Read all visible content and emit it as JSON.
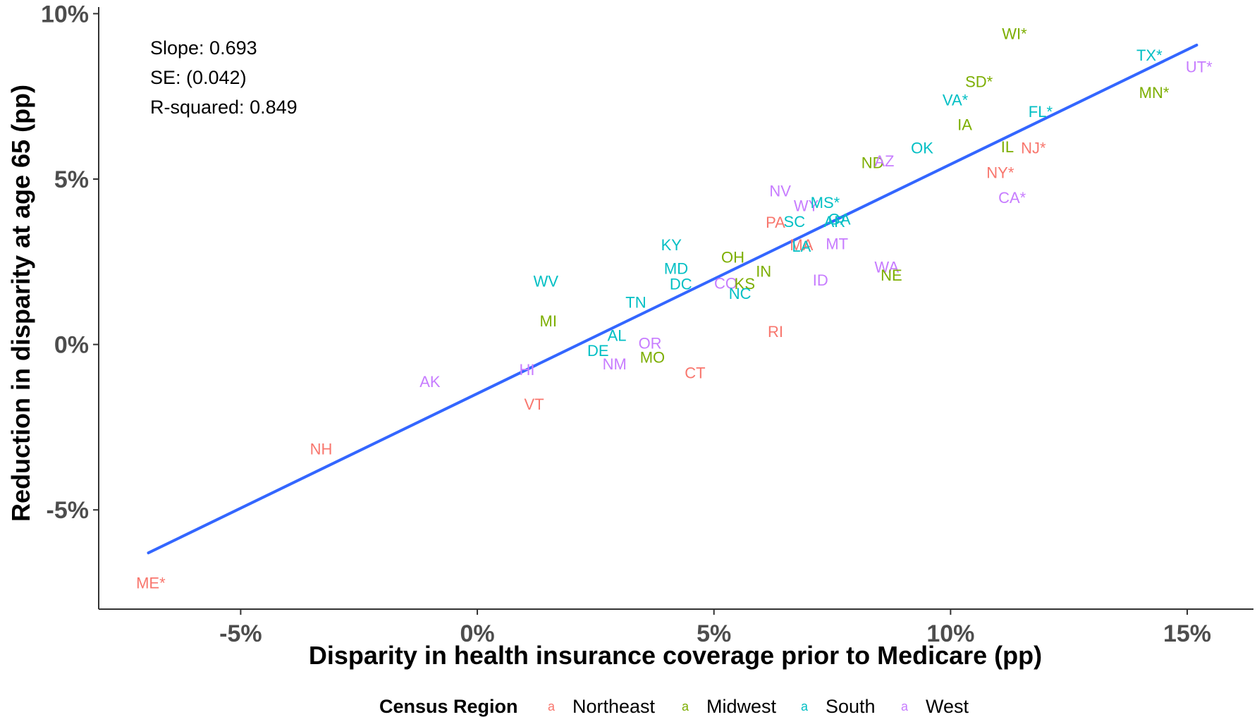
{
  "chart_data": {
    "type": "scatter",
    "xlabel": "Disparity in health insurance coverage prior to Medicare (pp)",
    "ylabel": "Reduction in disparity at age 65 (pp)",
    "xlim": [
      -8,
      16.4
    ],
    "ylim": [
      -8.0,
      10.2
    ],
    "x_ticks": [
      -5,
      0,
      5,
      10,
      15
    ],
    "x_tick_labels": [
      "-5%",
      "0%",
      "5%",
      "10%",
      "15%"
    ],
    "y_ticks": [
      -5,
      0,
      5,
      10
    ],
    "y_tick_labels": [
      "-5%",
      "0%",
      "5%",
      "10%"
    ],
    "grid": false,
    "annotations": [
      "Slope: 0.693",
      "SE: (0.042)",
      "R-squared: 0.849"
    ],
    "fit_line": {
      "x": [
        -6.95,
        15.2
      ],
      "y": [
        -6.3,
        9.05
      ],
      "color": "#3366FF"
    },
    "legend": {
      "title": "Census Region",
      "placement": "bottom",
      "key_glyph": "a",
      "entries": [
        {
          "name": "Northeast",
          "color": "#F8766D"
        },
        {
          "name": "Midwest",
          "color": "#7CAE00"
        },
        {
          "name": "South",
          "color": "#00BFC4"
        },
        {
          "name": "West",
          "color": "#C77CFF"
        }
      ]
    },
    "points": [
      {
        "label": "ME*",
        "x": -6.9,
        "y": -7.2,
        "region": "Northeast"
      },
      {
        "label": "NH",
        "x": -3.3,
        "y": -3.15,
        "region": "Northeast"
      },
      {
        "label": "AK",
        "x": -1.0,
        "y": -1.12,
        "region": "West"
      },
      {
        "label": "HI",
        "x": 1.05,
        "y": -0.75,
        "region": "West"
      },
      {
        "label": "VT",
        "x": 1.2,
        "y": -1.8,
        "region": "Northeast"
      },
      {
        "label": "WV",
        "x": 1.45,
        "y": 1.92,
        "region": "South"
      },
      {
        "label": "MI",
        "x": 1.5,
        "y": 0.72,
        "region": "Midwest"
      },
      {
        "label": "DE",
        "x": 2.55,
        "y": -0.18,
        "region": "South"
      },
      {
        "label": "AL",
        "x": 2.95,
        "y": 0.28,
        "region": "South"
      },
      {
        "label": "NM",
        "x": 2.9,
        "y": -0.58,
        "region": "West"
      },
      {
        "label": "TN",
        "x": 3.35,
        "y": 1.28,
        "region": "South"
      },
      {
        "label": "OR",
        "x": 3.65,
        "y": 0.05,
        "region": "West"
      },
      {
        "label": "MO",
        "x": 3.7,
        "y": -0.38,
        "region": "Midwest"
      },
      {
        "label": "KY",
        "x": 4.1,
        "y": 3.02,
        "region": "South"
      },
      {
        "label": "MD",
        "x": 4.2,
        "y": 2.3,
        "region": "South"
      },
      {
        "label": "DC",
        "x": 4.3,
        "y": 1.83,
        "region": "South"
      },
      {
        "label": "CT",
        "x": 4.6,
        "y": -0.85,
        "region": "Northeast"
      },
      {
        "label": "CO",
        "x": 5.25,
        "y": 1.86,
        "region": "West"
      },
      {
        "label": "KS",
        "x": 5.65,
        "y": 1.85,
        "region": "Midwest"
      },
      {
        "label": "NC",
        "x": 5.55,
        "y": 1.55,
        "region": "South"
      },
      {
        "label": "OH",
        "x": 5.4,
        "y": 2.65,
        "region": "Midwest"
      },
      {
        "label": "IN",
        "x": 6.05,
        "y": 2.22,
        "region": "Midwest"
      },
      {
        "label": "RI",
        "x": 6.3,
        "y": 0.4,
        "region": "Northeast"
      },
      {
        "label": "PA",
        "x": 6.3,
        "y": 3.7,
        "region": "Northeast"
      },
      {
        "label": "SC",
        "x": 6.7,
        "y": 3.72,
        "region": "South"
      },
      {
        "label": "NV",
        "x": 6.4,
        "y": 4.65,
        "region": "West"
      },
      {
        "label": "MA",
        "x": 6.85,
        "y": 3.02,
        "region": "Northeast"
      },
      {
        "label": "LA",
        "x": 6.85,
        "y": 2.98,
        "region": "South"
      },
      {
        "label": "WY",
        "x": 6.95,
        "y": 4.2,
        "region": "West"
      },
      {
        "label": "MS*",
        "x": 7.35,
        "y": 4.3,
        "region": "South"
      },
      {
        "label": "GA",
        "x": 7.65,
        "y": 3.8,
        "region": "South"
      },
      {
        "label": "AR",
        "x": 7.55,
        "y": 3.72,
        "region": "South"
      },
      {
        "label": "MT",
        "x": 7.6,
        "y": 3.05,
        "region": "West"
      },
      {
        "label": "ID",
        "x": 7.25,
        "y": 1.95,
        "region": "West"
      },
      {
        "label": "WA",
        "x": 8.65,
        "y": 2.35,
        "region": "West"
      },
      {
        "label": "NE",
        "x": 8.75,
        "y": 2.1,
        "region": "Midwest"
      },
      {
        "label": "ND",
        "x": 8.35,
        "y": 5.5,
        "region": "Midwest"
      },
      {
        "label": "AZ",
        "x": 8.6,
        "y": 5.55,
        "region": "West"
      },
      {
        "label": "OK",
        "x": 9.4,
        "y": 5.95,
        "region": "South"
      },
      {
        "label": "VA*",
        "x": 10.1,
        "y": 7.4,
        "region": "South"
      },
      {
        "label": "IA",
        "x": 10.3,
        "y": 6.65,
        "region": "Midwest"
      },
      {
        "label": "SD*",
        "x": 10.6,
        "y": 7.95,
        "region": "Midwest"
      },
      {
        "label": "WI*",
        "x": 11.35,
        "y": 9.4,
        "region": "Midwest"
      },
      {
        "label": "IL",
        "x": 11.2,
        "y": 5.98,
        "region": "Midwest"
      },
      {
        "label": "NJ*",
        "x": 11.75,
        "y": 5.95,
        "region": "Northeast"
      },
      {
        "label": "NY*",
        "x": 11.05,
        "y": 5.2,
        "region": "Northeast"
      },
      {
        "label": "CA*",
        "x": 11.3,
        "y": 4.45,
        "region": "West"
      },
      {
        "label": "FL*",
        "x": 11.9,
        "y": 7.05,
        "region": "South"
      },
      {
        "label": "MN*",
        "x": 14.3,
        "y": 7.62,
        "region": "Midwest"
      },
      {
        "label": "TX*",
        "x": 14.2,
        "y": 8.75,
        "region": "South"
      },
      {
        "label": "UT*",
        "x": 15.25,
        "y": 8.4,
        "region": "West"
      }
    ]
  }
}
